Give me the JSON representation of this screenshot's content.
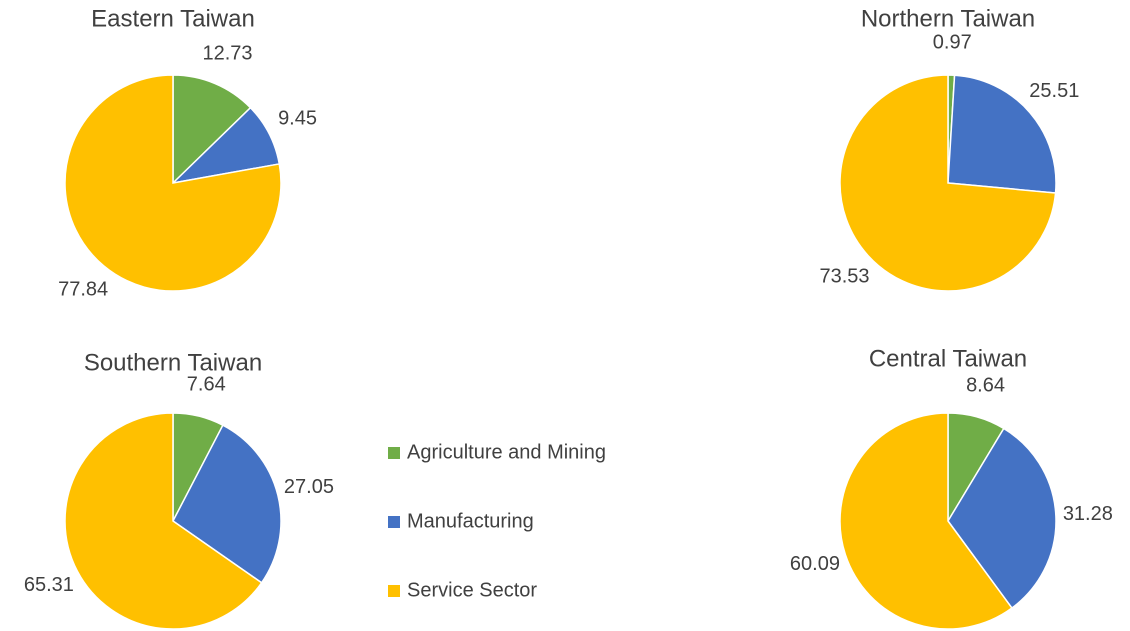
{
  "chart_data": [
    {
      "type": "pie",
      "title": "Eastern Taiwan",
      "values": [
        12.73,
        9.45,
        77.84
      ],
      "colors": [
        "#70ad47",
        "#4472c4",
        "#ffc000"
      ]
    },
    {
      "type": "pie",
      "title": "Northern Taiwan",
      "values": [
        0.97,
        25.51,
        73.53
      ],
      "colors": [
        "#70ad47",
        "#4472c4",
        "#ffc000"
      ]
    },
    {
      "type": "pie",
      "title": "Southern Taiwan",
      "values": [
        7.64,
        27.05,
        65.31
      ],
      "colors": [
        "#70ad47",
        "#4472c4",
        "#ffc000"
      ]
    },
    {
      "type": "pie",
      "title": "Central Taiwan",
      "values": [
        8.64,
        31.28,
        60.09
      ],
      "colors": [
        "#70ad47",
        "#4472c4",
        "#ffc000"
      ]
    }
  ],
  "legend": {
    "names": [
      "Agriculture and Mining",
      "Manufacturing",
      "Service Sector"
    ],
    "colors": [
      "#70ad47",
      "#4472c4",
      "#ffc000"
    ]
  }
}
